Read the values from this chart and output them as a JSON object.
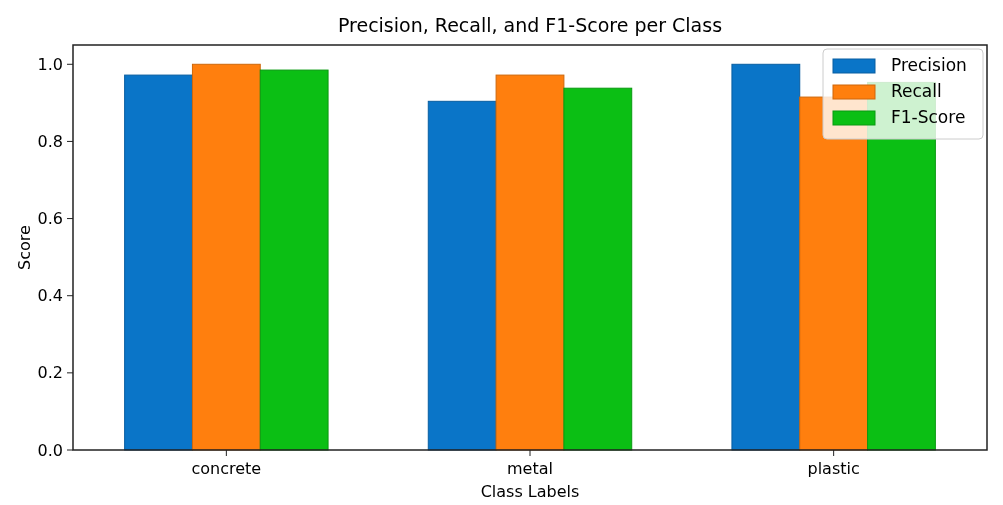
{
  "chart_data": {
    "type": "bar",
    "title": "Precision, Recall, and F1-Score per Class",
    "xlabel": "Class Labels",
    "ylabel": "Score",
    "categories": [
      "concrete",
      "metal",
      "plastic"
    ],
    "series": [
      {
        "name": "Precision",
        "color": "#0a75c8",
        "values": [
          0.972,
          0.904,
          1.0
        ]
      },
      {
        "name": "Recall",
        "color": "#ff7f0e",
        "values": [
          1.0,
          0.972,
          0.915
        ]
      },
      {
        "name": "F1-Score",
        "color": "#0bbf14",
        "values": [
          0.985,
          0.938,
          0.953
        ]
      }
    ],
    "ylim": [
      0,
      1.05
    ],
    "yticks": [
      {
        "value": 0,
        "label": "0.0"
      },
      {
        "value": 0.2,
        "label": "0.2"
      },
      {
        "value": 0.4,
        "label": "0.4"
      },
      {
        "value": 0.6,
        "label": "0.6"
      },
      {
        "value": 0.8,
        "label": "0.8"
      },
      {
        "value": 1,
        "label": "1.0"
      }
    ],
    "legend": "top right",
    "grid": false
  }
}
